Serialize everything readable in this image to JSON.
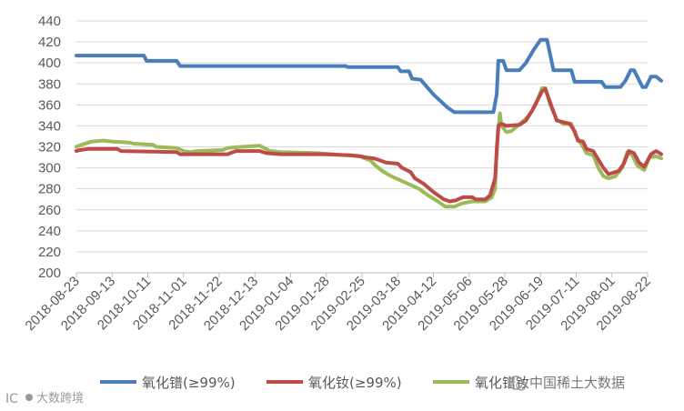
{
  "chart_data": {
    "type": "line",
    "title": "",
    "xlabel": "",
    "ylabel": "",
    "ylim": [
      200,
      440
    ],
    "yticks": [
      200,
      220,
      240,
      260,
      280,
      300,
      320,
      340,
      360,
      380,
      400,
      420,
      440
    ],
    "xticks": [
      "2018-08-23",
      "2018-09-13",
      "2018-10-11",
      "2018-11-01",
      "2018-11-22",
      "2018-12-13",
      "2019-01-04",
      "2019-01-28",
      "2019-02-25",
      "2019-03-18",
      "2019-04-12",
      "2019-05-06",
      "2019-05-28",
      "2019-06-19",
      "2019-07-11",
      "2019-08-01",
      "2019-08-22"
    ],
    "grid": "horizontal",
    "legend_position": "bottom",
    "series": [
      {
        "name": "氧化镨(≥99%)",
        "color": "#4a7ebb",
        "points": [
          [
            "2018-08-23",
            407
          ],
          [
            "2018-10-08",
            407
          ],
          [
            "2018-10-10",
            402
          ],
          [
            "2018-10-28",
            402
          ],
          [
            "2018-10-30",
            397
          ],
          [
            "2019-02-12",
            397
          ],
          [
            "2019-02-14",
            396
          ],
          [
            "2019-03-18",
            396
          ],
          [
            "2019-03-20",
            392
          ],
          [
            "2019-03-26",
            392
          ],
          [
            "2019-03-28",
            385
          ],
          [
            "2019-04-03",
            384
          ],
          [
            "2019-04-12",
            370
          ],
          [
            "2019-04-21",
            358
          ],
          [
            "2019-04-26",
            353
          ],
          [
            "2019-05-21",
            353
          ],
          [
            "2019-05-23",
            370
          ],
          [
            "2019-05-24",
            402
          ],
          [
            "2019-05-27",
            402
          ],
          [
            "2019-05-29",
            393
          ],
          [
            "2019-06-06",
            393
          ],
          [
            "2019-06-10",
            400
          ],
          [
            "2019-06-15",
            413
          ],
          [
            "2019-06-19",
            422
          ],
          [
            "2019-06-23",
            422
          ],
          [
            "2019-06-27",
            393
          ],
          [
            "2019-07-08",
            393
          ],
          [
            "2019-07-10",
            382
          ],
          [
            "2019-07-26",
            382
          ],
          [
            "2019-07-28",
            377
          ],
          [
            "2019-08-06",
            377
          ],
          [
            "2019-08-09",
            383
          ],
          [
            "2019-08-12",
            393
          ],
          [
            "2019-08-14",
            393
          ],
          [
            "2019-08-19",
            377
          ],
          [
            "2019-08-21",
            377
          ],
          [
            "2019-08-24",
            387
          ],
          [
            "2019-08-27",
            387
          ],
          [
            "2019-08-30",
            383
          ]
        ]
      },
      {
        "name": "氧化钕(≥99%)",
        "color": "#be4b48",
        "points": [
          [
            "2018-08-23",
            316
          ],
          [
            "2018-08-25",
            317
          ],
          [
            "2018-08-30",
            318
          ],
          [
            "2018-09-17",
            318
          ],
          [
            "2018-09-20",
            316
          ],
          [
            "2018-10-28",
            315
          ],
          [
            "2018-10-30",
            313
          ],
          [
            "2018-11-17",
            313
          ],
          [
            "2018-11-27",
            313
          ],
          [
            "2018-11-30",
            315
          ],
          [
            "2018-12-02",
            316
          ],
          [
            "2018-12-16",
            316
          ],
          [
            "2018-12-20",
            314
          ],
          [
            "2018-12-29",
            313
          ],
          [
            "2019-01-26",
            313
          ],
          [
            "2019-02-16",
            312
          ],
          [
            "2019-02-24",
            311
          ],
          [
            "2019-02-27",
            310
          ],
          [
            "2019-03-04",
            309
          ],
          [
            "2019-03-06",
            308
          ],
          [
            "2019-03-11",
            305
          ],
          [
            "2019-03-18",
            304
          ],
          [
            "2019-03-21",
            300
          ],
          [
            "2019-03-27",
            296
          ],
          [
            "2019-03-30",
            290
          ],
          [
            "2019-04-05",
            285
          ],
          [
            "2019-04-12",
            277
          ],
          [
            "2019-04-19",
            270
          ],
          [
            "2019-04-23",
            268
          ],
          [
            "2019-04-27",
            269
          ],
          [
            "2019-05-02",
            272
          ],
          [
            "2019-05-08",
            272
          ],
          [
            "2019-05-10",
            270
          ],
          [
            "2019-05-16",
            270
          ],
          [
            "2019-05-19",
            274
          ],
          [
            "2019-05-22",
            290
          ],
          [
            "2019-05-24",
            340
          ],
          [
            "2019-05-26",
            342
          ],
          [
            "2019-05-29",
            340
          ],
          [
            "2019-06-06",
            341
          ],
          [
            "2019-06-10",
            345
          ],
          [
            "2019-06-14",
            355
          ],
          [
            "2019-06-20",
            373
          ],
          [
            "2019-06-22",
            375
          ],
          [
            "2019-06-25",
            362
          ],
          [
            "2019-06-29",
            345
          ],
          [
            "2019-07-07",
            342
          ],
          [
            "2019-07-10",
            335
          ],
          [
            "2019-07-12",
            326
          ],
          [
            "2019-07-15",
            325
          ],
          [
            "2019-07-17",
            318
          ],
          [
            "2019-07-21",
            316
          ],
          [
            "2019-07-27",
            300
          ],
          [
            "2019-07-30",
            294
          ],
          [
            "2019-08-05",
            297
          ],
          [
            "2019-08-08",
            304
          ],
          [
            "2019-08-11",
            316
          ],
          [
            "2019-08-14",
            314
          ],
          [
            "2019-08-17",
            305
          ],
          [
            "2019-08-20",
            301
          ],
          [
            "2019-08-24",
            313
          ],
          [
            "2019-08-27",
            316
          ],
          [
            "2019-08-30",
            313
          ]
        ]
      },
      {
        "name": "氧化镨钕",
        "color": "#9bbb59",
        "points": [
          [
            "2018-08-23",
            320
          ],
          [
            "2018-08-26",
            322
          ],
          [
            "2018-09-01",
            325
          ],
          [
            "2018-09-08",
            326
          ],
          [
            "2018-09-13",
            325
          ],
          [
            "2018-09-27",
            324
          ],
          [
            "2018-09-30",
            323
          ],
          [
            "2018-10-14",
            322
          ],
          [
            "2018-10-16",
            320
          ],
          [
            "2018-10-28",
            319
          ],
          [
            "2018-11-01",
            316
          ],
          [
            "2018-11-05",
            315
          ],
          [
            "2018-11-09",
            316
          ],
          [
            "2018-11-24",
            317
          ],
          [
            "2018-11-27",
            319
          ],
          [
            "2018-12-05",
            320
          ],
          [
            "2018-12-16",
            321
          ],
          [
            "2018-12-20",
            318
          ],
          [
            "2018-12-22",
            316
          ],
          [
            "2018-12-29",
            315
          ],
          [
            "2019-01-22",
            314
          ],
          [
            "2019-02-12",
            312
          ],
          [
            "2019-02-23",
            311
          ],
          [
            "2019-03-02",
            307
          ],
          [
            "2019-03-05",
            302
          ],
          [
            "2019-03-09",
            297
          ],
          [
            "2019-03-13",
            293
          ],
          [
            "2019-03-20",
            288
          ],
          [
            "2019-03-25",
            285
          ],
          [
            "2019-04-02",
            280
          ],
          [
            "2019-04-08",
            274
          ],
          [
            "2019-04-15",
            268
          ],
          [
            "2019-04-20",
            263
          ],
          [
            "2019-04-26",
            263
          ],
          [
            "2019-05-01",
            266
          ],
          [
            "2019-05-08",
            268
          ],
          [
            "2019-05-16",
            268
          ],
          [
            "2019-05-20",
            272
          ],
          [
            "2019-05-22",
            280
          ],
          [
            "2019-05-23",
            320
          ],
          [
            "2019-05-25",
            352
          ],
          [
            "2019-05-26",
            340
          ],
          [
            "2019-05-29",
            334
          ],
          [
            "2019-06-01",
            335
          ],
          [
            "2019-06-04",
            339
          ],
          [
            "2019-06-08",
            344
          ],
          [
            "2019-06-12",
            350
          ],
          [
            "2019-06-16",
            360
          ],
          [
            "2019-06-20",
            376
          ],
          [
            "2019-06-22",
            376
          ],
          [
            "2019-06-25",
            360
          ],
          [
            "2019-06-29",
            346
          ],
          [
            "2019-07-03",
            342
          ],
          [
            "2019-07-08",
            342
          ],
          [
            "2019-07-11",
            330
          ],
          [
            "2019-07-13",
            325
          ],
          [
            "2019-07-15",
            320
          ],
          [
            "2019-07-17",
            314
          ],
          [
            "2019-07-21",
            312
          ],
          [
            "2019-07-24",
            300
          ],
          [
            "2019-07-27",
            292
          ],
          [
            "2019-07-30",
            290
          ],
          [
            "2019-08-03",
            292
          ],
          [
            "2019-08-07",
            300
          ],
          [
            "2019-08-10",
            315
          ],
          [
            "2019-08-13",
            312
          ],
          [
            "2019-08-16",
            302
          ],
          [
            "2019-08-20",
            298
          ],
          [
            "2019-08-23",
            310
          ],
          [
            "2019-08-27",
            311
          ],
          [
            "2019-08-30",
            309
          ]
        ]
      }
    ]
  },
  "legend": {
    "series1": "氧化镨(≥99%)",
    "series2": "氧化钕(≥99%)",
    "series3": "氧化镨钕"
  },
  "watermark": {
    "bottom_left": "大数跨境",
    "bottom_right": "中国稀土大数据"
  }
}
